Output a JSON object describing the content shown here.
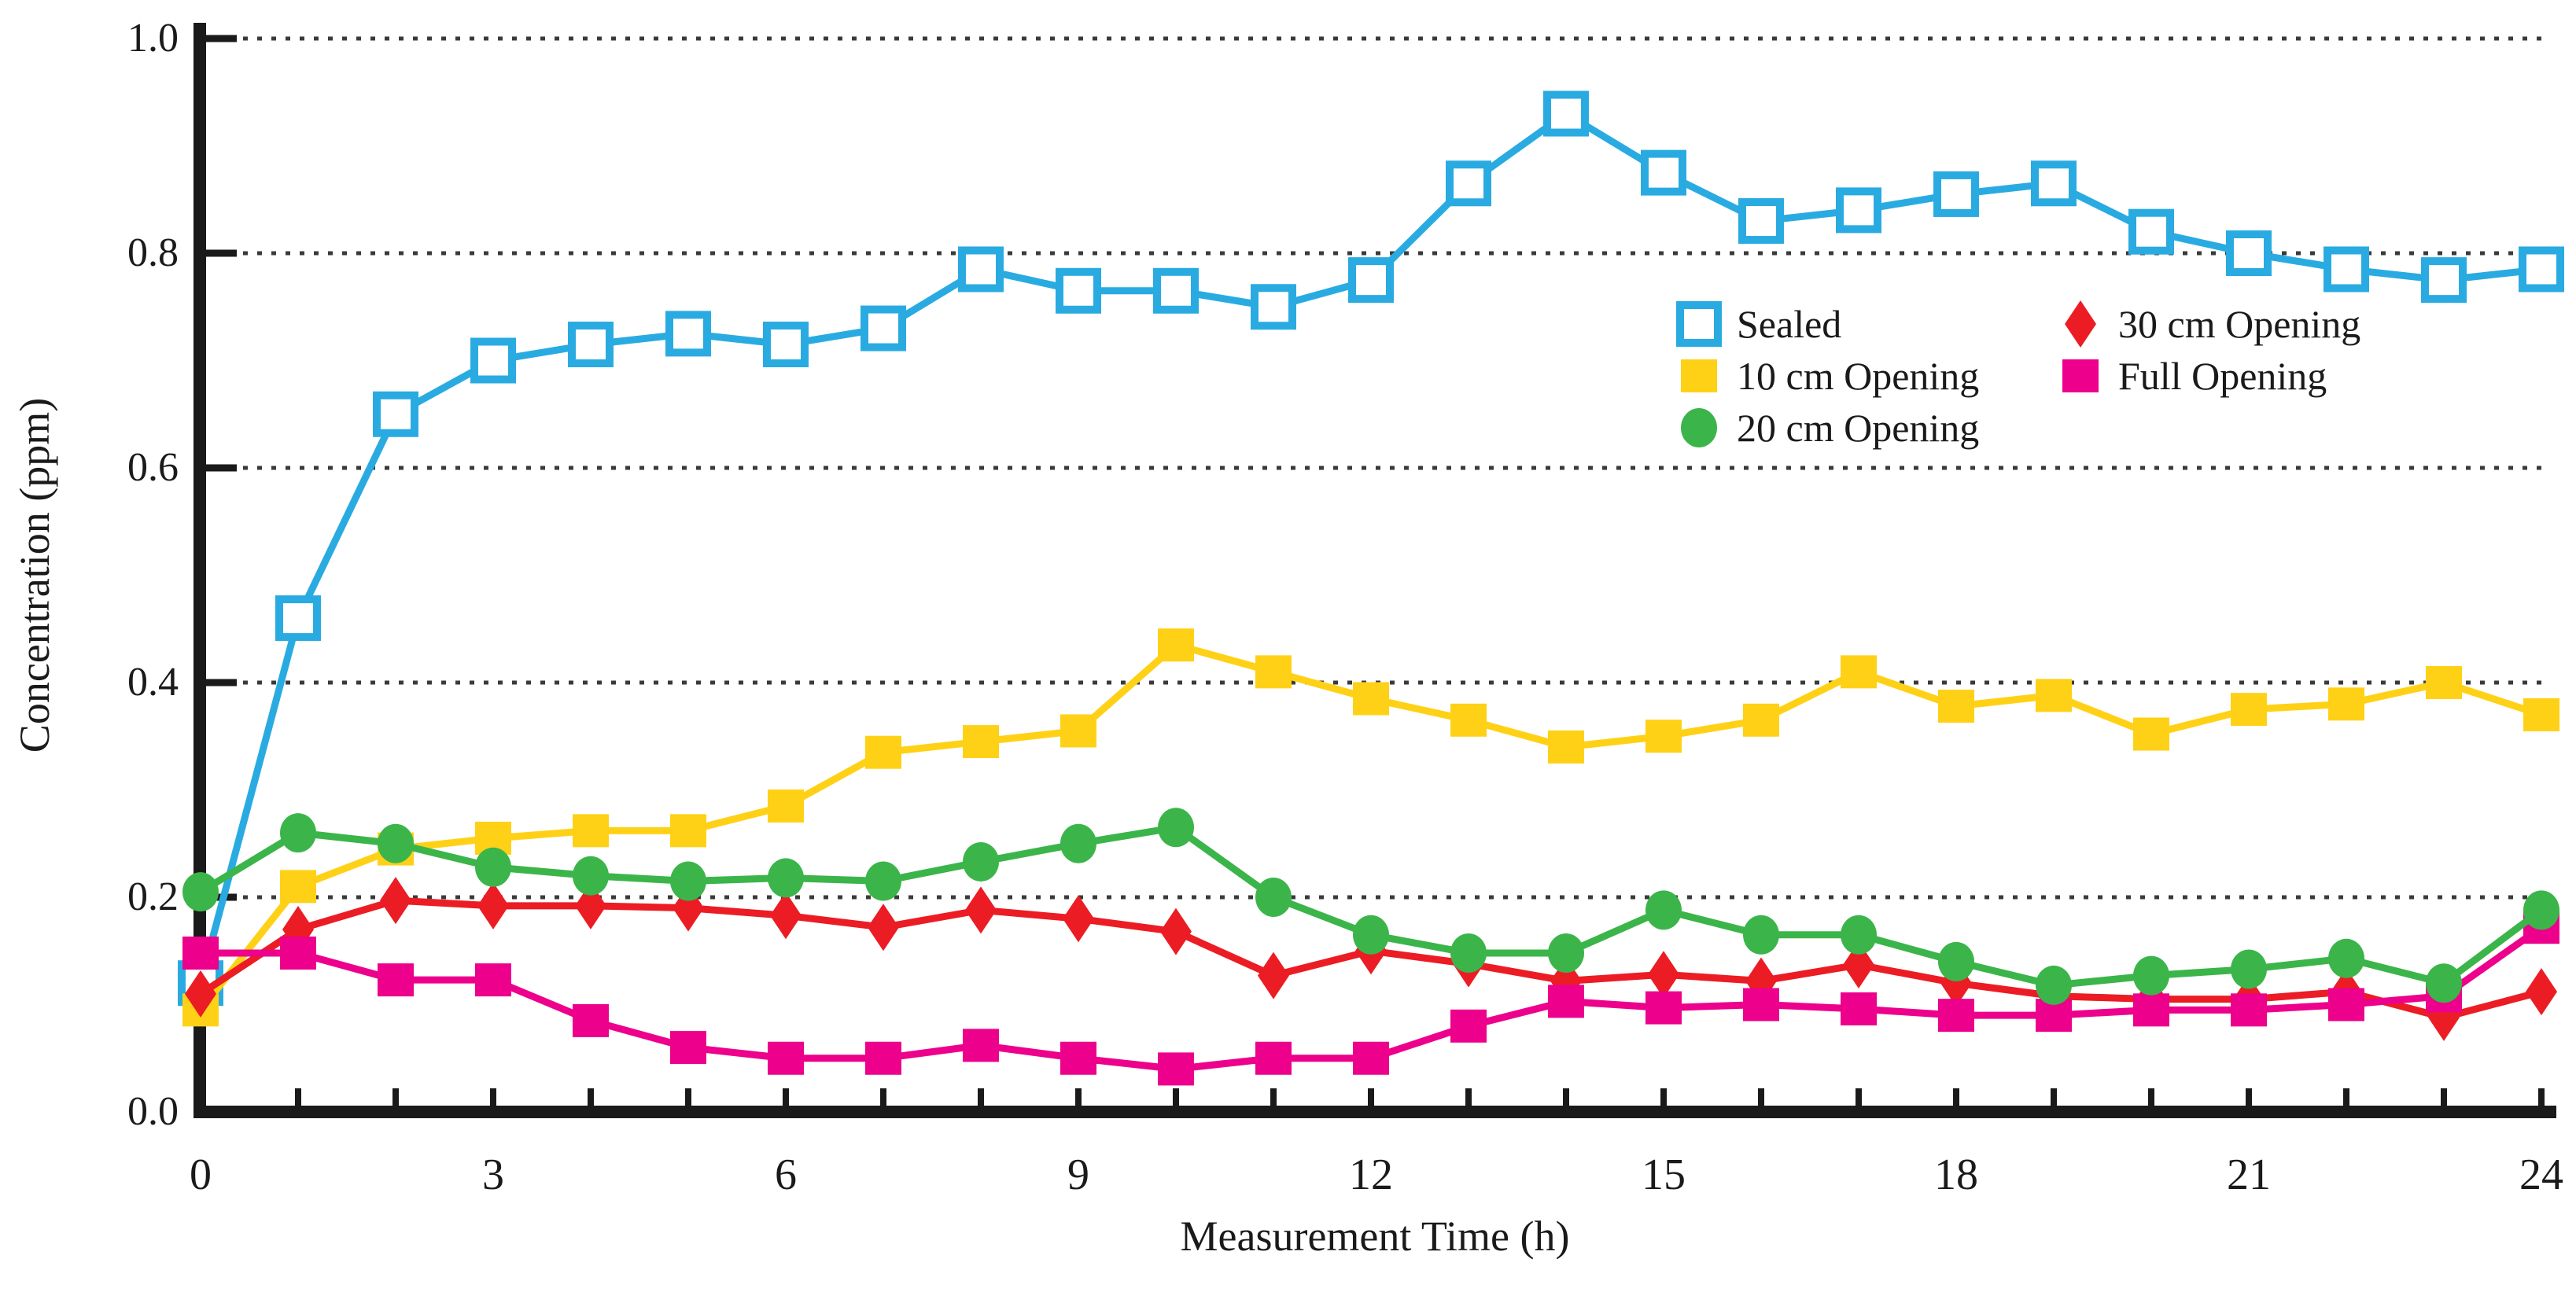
{
  "chart_data": {
    "type": "line",
    "title": "",
    "xlabel": "Measurement Time (h)",
    "ylabel": "Concentration (ppm)",
    "xlim": [
      0,
      24
    ],
    "ylim": [
      0.0,
      1.0
    ],
    "x": [
      0,
      1,
      2,
      3,
      4,
      5,
      6,
      7,
      8,
      9,
      10,
      11,
      12,
      13,
      14,
      15,
      16,
      17,
      18,
      19,
      20,
      21,
      22,
      23,
      24
    ],
    "x_major_tick_labels": [
      "0",
      "3",
      "6",
      "9",
      "12",
      "15",
      "18",
      "21",
      "24"
    ],
    "x_major_tick_values": [
      0,
      3,
      6,
      9,
      12,
      15,
      18,
      21,
      24
    ],
    "x_minor_tick_step": 1,
    "y_tick_labels": [
      "0.0",
      "0.2",
      "0.4",
      "0.6",
      "0.8",
      "1.0"
    ],
    "y_tick_values": [
      0.0,
      0.2,
      0.4,
      0.6,
      0.8,
      1.0
    ],
    "grid": "horizontal-dotted",
    "grid_color": "#3a3a3a",
    "legend_position": "inside-upper-right",
    "series": [
      {
        "name": "Sealed",
        "marker": "open-square",
        "color": "#29ABE2",
        "values": [
          0.12,
          0.46,
          0.65,
          0.7,
          0.715,
          0.725,
          0.715,
          0.73,
          0.785,
          0.765,
          0.765,
          0.75,
          0.775,
          0.865,
          0.93,
          0.875,
          0.83,
          0.84,
          0.855,
          0.865,
          0.82,
          0.8,
          0.785,
          0.775,
          0.785
        ]
      },
      {
        "name": "10 cm Opening",
        "marker": "square",
        "color": "#FFD116",
        "values": [
          0.095,
          0.21,
          0.245,
          0.255,
          0.262,
          0.262,
          0.285,
          0.335,
          0.345,
          0.355,
          0.435,
          0.41,
          0.385,
          0.365,
          0.34,
          0.35,
          0.365,
          0.41,
          0.378,
          0.388,
          0.352,
          0.375,
          0.38,
          0.4,
          0.37
        ]
      },
      {
        "name": "20 cm Opening",
        "marker": "circle",
        "color": "#3BB54A",
        "values": [
          0.205,
          0.26,
          0.25,
          0.228,
          0.22,
          0.215,
          0.218,
          0.215,
          0.233,
          0.25,
          0.265,
          0.2,
          0.165,
          0.148,
          0.148,
          0.188,
          0.165,
          0.165,
          0.14,
          0.118,
          0.127,
          0.133,
          0.143,
          0.12,
          0.188
        ]
      },
      {
        "name": "30 cm Opening",
        "marker": "diamond",
        "color": "#EC1C24",
        "values": [
          0.11,
          0.17,
          0.197,
          0.192,
          0.192,
          0.19,
          0.183,
          0.172,
          0.188,
          0.18,
          0.168,
          0.127,
          0.15,
          0.138,
          0.122,
          0.128,
          0.122,
          0.137,
          0.12,
          0.108,
          0.105,
          0.105,
          0.112,
          0.088,
          0.112
        ]
      },
      {
        "name": "Full Opening",
        "marker": "square",
        "color": "#EC008C",
        "values": [
          0.148,
          0.148,
          0.123,
          0.123,
          0.085,
          0.06,
          0.05,
          0.05,
          0.062,
          0.05,
          0.04,
          0.05,
          0.05,
          0.08,
          0.103,
          0.097,
          0.1,
          0.096,
          0.09,
          0.09,
          0.095,
          0.095,
          0.1,
          0.108,
          0.172
        ]
      }
    ],
    "legend_columns": [
      [
        "Sealed",
        "10 cm Opening",
        "20 cm Opening"
      ],
      [
        "30 cm Opening",
        "Full Opening"
      ]
    ]
  }
}
